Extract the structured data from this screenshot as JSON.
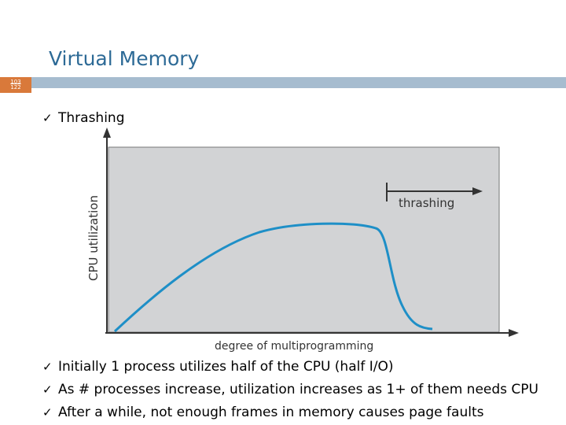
{
  "slide": {
    "title": "Virtual Memory",
    "number_top": "103",
    "number_bottom": "122"
  },
  "heading_bullet": "Thrashing",
  "diagram": {
    "ylabel": "CPU utilization",
    "xlabel": "degree of multiprogramming",
    "annotation": "thrashing",
    "panel_color": "#d2d3d5",
    "curve_color": "#1e8fc7"
  },
  "bullets": [
    "Initially 1 process utilizes half of the CPU (half I/O)",
    "As # processes increase, utilization increases as 1+ of them needs CPU",
    "After a while, not enough frames in memory causes page faults"
  ],
  "check_icon": "✓"
}
